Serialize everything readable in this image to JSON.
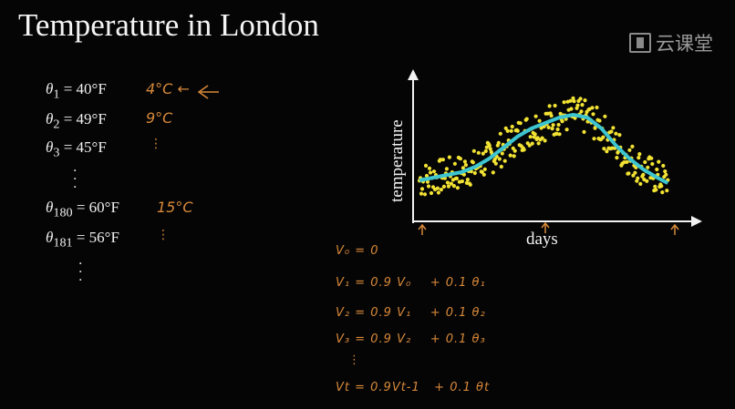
{
  "title": "Temperature in London",
  "logo": {
    "text": "云课堂",
    "icon": "book-icon"
  },
  "equations": [
    {
      "sub": "1",
      "value": "= 40°F",
      "note": "4°C ←"
    },
    {
      "sub": "2",
      "value": "= 49°F",
      "note": "9°C"
    },
    {
      "sub": "3",
      "value": "= 45°F",
      "note": "⋮"
    },
    {
      "sub": "180",
      "value": "= 60°F",
      "note": "15°C"
    },
    {
      "sub": "181",
      "value": "= 56°F",
      "note": "⋮"
    }
  ],
  "vdefs": [
    "V₀ = 0",
    "V₁ = 0.9 V₀    + 0.1 θ₁",
    "V₂ = 0.9 V₁    + 0.1 θ₂",
    "V₃ = 0.9 V₂    + 0.1 θ₃",
    "⋮",
    "Vt = 0.9Vt-1   + 0.1 θt"
  ],
  "chart_data": {
    "type": "scatter",
    "xlabel": "days",
    "ylabel": "temperature",
    "xlim": [
      0,
      365
    ],
    "ylim": [
      0,
      100
    ],
    "grid": false,
    "colors": {
      "points": "#f2e233",
      "smooth": "#3cc4d0",
      "axes": "#f2f2f2"
    },
    "smooth_line": {
      "x": [
        0,
        20,
        40,
        60,
        80,
        100,
        120,
        140,
        160,
        180,
        200,
        220,
        240,
        260,
        280,
        300,
        320,
        340,
        355
      ],
      "y": [
        28,
        30,
        32,
        34,
        38,
        44,
        52,
        60,
        66,
        70,
        74,
        76,
        74,
        66,
        54,
        44,
        36,
        30,
        26
      ]
    }
  }
}
